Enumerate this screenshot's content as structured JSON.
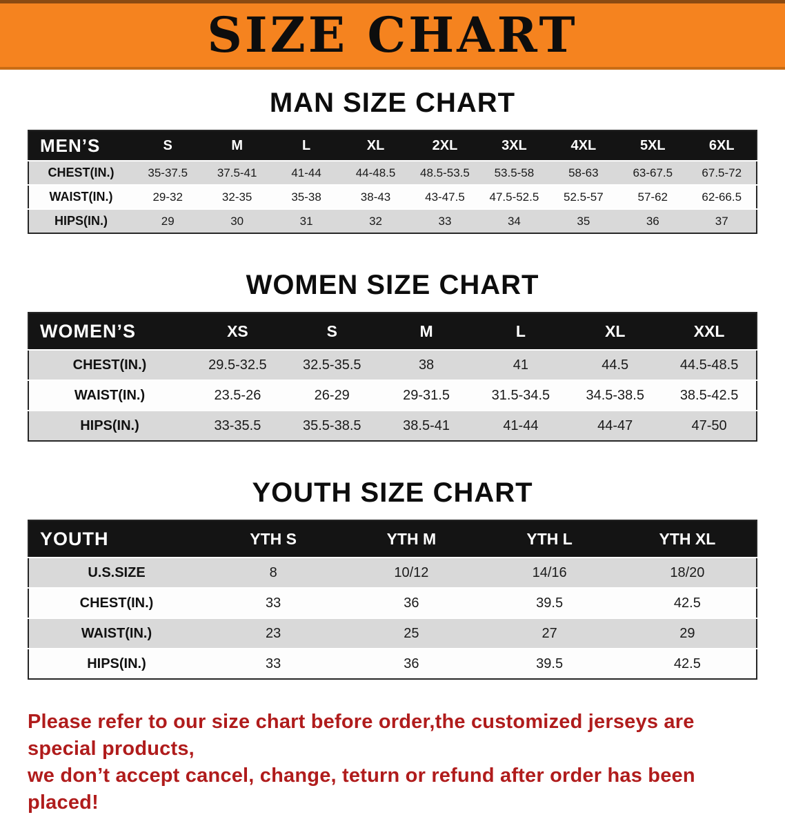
{
  "banner": {
    "title": "SIZE CHART"
  },
  "colors": {
    "banner_bg": "#F5831F",
    "header_row_bg": "#141414",
    "row_gray": "#D9D9D9",
    "row_white": "#FDFDFD",
    "footer_text": "#B01C1C"
  },
  "sections": [
    {
      "id": "mens",
      "heading": "MAN SIZE CHART",
      "header_label": "MEN’S",
      "columns": [
        "S",
        "M",
        "L",
        "XL",
        "2XL",
        "3XL",
        "4XL",
        "5XL",
        "6XL"
      ],
      "rows": [
        {
          "label": "CHEST(IN.)",
          "values": [
            "35-37.5",
            "37.5-41",
            "41-44",
            "44-48.5",
            "48.5-53.5",
            "53.5-58",
            "58-63",
            "63-67.5",
            "67.5-72"
          ]
        },
        {
          "label": "WAIST(IN.)",
          "values": [
            "29-32",
            "32-35",
            "35-38",
            "38-43",
            "43-47.5",
            "47.5-52.5",
            "52.5-57",
            "57-62",
            "62-66.5"
          ]
        },
        {
          "label": "HIPS(IN.)",
          "values": [
            "29",
            "30",
            "31",
            "32",
            "33",
            "34",
            "35",
            "36",
            "37"
          ]
        }
      ]
    },
    {
      "id": "womens",
      "heading": "WOMEN SIZE CHART",
      "header_label": "WOMEN’S",
      "columns": [
        "XS",
        "S",
        "M",
        "L",
        "XL",
        "XXL"
      ],
      "rows": [
        {
          "label": "CHEST(IN.)",
          "values": [
            "29.5-32.5",
            "32.5-35.5",
            "38",
            "41",
            "44.5",
            "44.5-48.5"
          ]
        },
        {
          "label": "WAIST(IN.)",
          "values": [
            "23.5-26",
            "26-29",
            "29-31.5",
            "31.5-34.5",
            "34.5-38.5",
            "38.5-42.5"
          ]
        },
        {
          "label": "HIPS(IN.)",
          "values": [
            "33-35.5",
            "35.5-38.5",
            "38.5-41",
            "41-44",
            "44-47",
            "47-50"
          ]
        }
      ]
    },
    {
      "id": "youth",
      "heading": "YOUTH SIZE CHART",
      "header_label": "YOUTH",
      "columns": [
        "YTH S",
        "YTH M",
        "YTH L",
        "YTH XL"
      ],
      "rows": [
        {
          "label": "U.S.SIZE",
          "values": [
            "8",
            "10/12",
            "14/16",
            "18/20"
          ]
        },
        {
          "label": "CHEST(IN.)",
          "values": [
            "33",
            "36",
            "39.5",
            "42.5"
          ]
        },
        {
          "label": "WAIST(IN.)",
          "values": [
            "23",
            "25",
            "27",
            "29"
          ]
        },
        {
          "label": "HIPS(IN.)",
          "values": [
            "33",
            "36",
            "39.5",
            "42.5"
          ]
        }
      ]
    }
  ],
  "footer": {
    "line1": "Please refer to our size chart before order,the customized jerseys are special products,",
    "line2": "we don’t accept cancel, change, teturn or refund after order has been placed!"
  }
}
